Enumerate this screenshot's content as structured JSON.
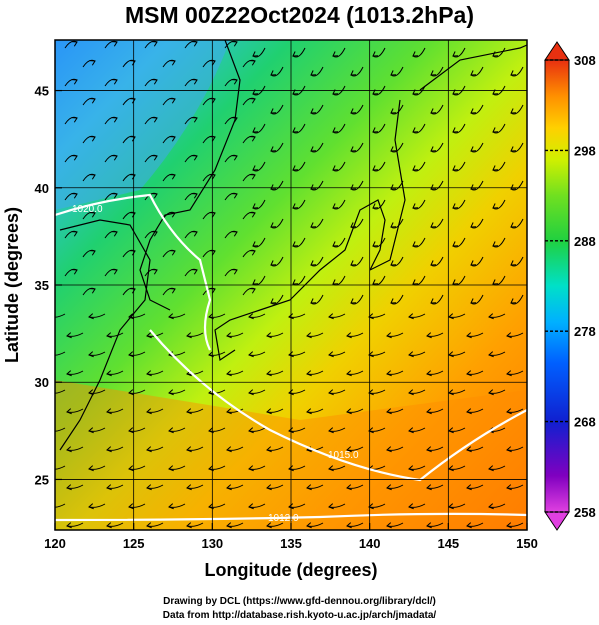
{
  "title": "MSM 00Z22Oct2024 (1013.2hPa)",
  "map": {
    "x_axis": {
      "label": "Longitude (degrees)",
      "min": 120,
      "max": 150,
      "ticks": [
        "120",
        "125",
        "130",
        "135",
        "140",
        "145",
        "150"
      ]
    },
    "y_axis": {
      "label": "Latitude  (degrees)",
      "min": 22.4,
      "max": 47.6,
      "ticks": [
        "25",
        "30",
        "35",
        "40",
        "45"
      ]
    },
    "grid": true,
    "isobars": [
      {
        "label": "1020.0"
      },
      {
        "label": "1015.0"
      },
      {
        "label": "1012.0"
      }
    ]
  },
  "colorbar": {
    "ticks": [
      "308",
      "298",
      "288",
      "278",
      "268",
      "258"
    ],
    "min": 258,
    "max": 308,
    "colors": [
      "#e040e0",
      "#8000c0",
      "#1020d0",
      "#0060ff",
      "#00b0ff",
      "#00e0c8",
      "#20d040",
      "#70e020",
      "#d0f000",
      "#ffd000",
      "#ff9000",
      "#ff5000",
      "#e83010"
    ]
  },
  "credits": {
    "line1": "Drawing by DCL (https://www.gfd-dennou.org/library/dcl/)",
    "line2": "Data from http://database.rish.kyoto-u.ac.jp/arch/jmadata/"
  }
}
